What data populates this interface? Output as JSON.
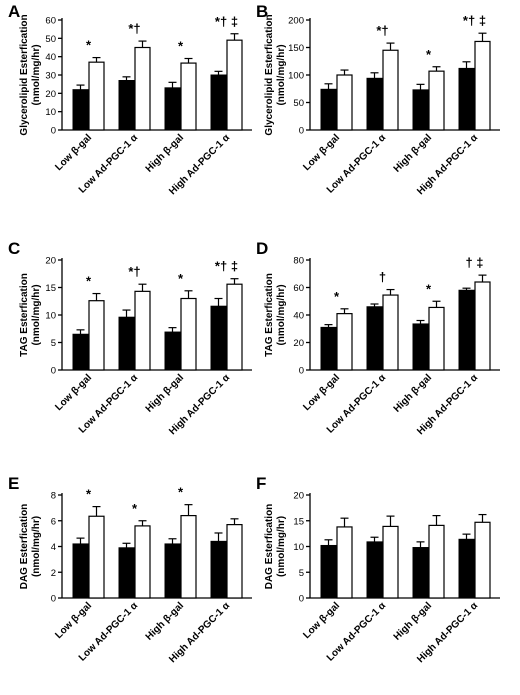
{
  "categories": [
    "Low β-gal",
    "Low Ad-PGC-1 α",
    "High β-gal",
    "High Ad-PGC-1 α"
  ],
  "colors": {
    "filled_series": "#000000",
    "open_series": "#ffffff",
    "stroke": "#000000"
  },
  "chart_data": [
    {
      "panel": "A",
      "type": "bar",
      "ylabel_lines": [
        "Glycerolipid Esterfication",
        "(nmol/mg/hr)"
      ],
      "ylim": [
        0,
        60
      ],
      "yticks": [
        0,
        10,
        20,
        30,
        40,
        50,
        60
      ],
      "series": [
        {
          "values": [
            22,
            27,
            23,
            30
          ],
          "errors": [
            2.5,
            2,
            3,
            2
          ]
        },
        {
          "values": [
            37,
            45,
            36.5,
            49
          ],
          "errors": [
            2.5,
            3.5,
            2.5,
            3.5
          ]
        }
      ],
      "annotations": [
        "*",
        "*†",
        "*",
        "*† ‡"
      ]
    },
    {
      "panel": "B",
      "type": "bar",
      "ylabel_lines": [
        "Glycerolipid Esterfication",
        "(nmol/mg/hr)"
      ],
      "ylim": [
        0,
        200
      ],
      "yticks": [
        0,
        50,
        100,
        150,
        200
      ],
      "series": [
        {
          "values": [
            74,
            94,
            73,
            112
          ],
          "errors": [
            10,
            10,
            10,
            12
          ]
        },
        {
          "values": [
            100,
            145,
            107,
            161
          ],
          "errors": [
            9,
            13,
            8,
            15
          ]
        }
      ],
      "annotations": [
        "",
        "*†",
        "*",
        "*† ‡"
      ]
    },
    {
      "panel": "C",
      "type": "bar",
      "ylabel_lines": [
        "TAG Esterfication",
        "(nmol/mg/hr)"
      ],
      "ylim": [
        0,
        20
      ],
      "yticks": [
        0,
        5,
        10,
        15,
        20
      ],
      "series": [
        {
          "values": [
            6.5,
            9.6,
            6.9,
            11.6
          ],
          "errors": [
            0.8,
            1.3,
            0.8,
            1.4
          ]
        },
        {
          "values": [
            12.6,
            14.3,
            13.0,
            15.6
          ],
          "errors": [
            1.3,
            1.3,
            1.4,
            1.0
          ]
        }
      ],
      "annotations": [
        "*",
        "*†",
        "*",
        "*† ‡"
      ]
    },
    {
      "panel": "D",
      "type": "bar",
      "ylabel_lines": [
        "TAG Esterfication",
        "(nmol/mg/hr)"
      ],
      "ylim": [
        0,
        80
      ],
      "yticks": [
        0,
        20,
        40,
        60,
        80
      ],
      "series": [
        {
          "values": [
            31,
            46,
            33.5,
            58
          ],
          "errors": [
            2,
            2,
            2.5,
            1.5
          ]
        },
        {
          "values": [
            41,
            54.5,
            45.5,
            64
          ],
          "errors": [
            3.5,
            4,
            4.5,
            5
          ]
        }
      ],
      "annotations": [
        "*",
        "†",
        "*",
        "† ‡"
      ]
    },
    {
      "panel": "E",
      "type": "bar",
      "ylabel_lines": [
        "DAG Esterfication",
        "(nmol/mg/hr)"
      ],
      "ylim": [
        0,
        8
      ],
      "yticks": [
        0,
        2,
        4,
        6,
        8
      ],
      "series": [
        {
          "values": [
            4.2,
            3.9,
            4.2,
            4.4
          ],
          "errors": [
            0.45,
            0.35,
            0.4,
            0.65
          ]
        },
        {
          "values": [
            6.35,
            5.6,
            6.4,
            5.7
          ],
          "errors": [
            0.75,
            0.4,
            0.85,
            0.45
          ]
        }
      ],
      "annotations": [
        "*",
        "*",
        "*",
        ""
      ]
    },
    {
      "panel": "F",
      "type": "bar",
      "ylabel_lines": [
        "DAG Esterfication",
        "(nmol/mg/hr)"
      ],
      "ylim": [
        0,
        20
      ],
      "yticks": [
        0,
        5,
        10,
        15,
        20
      ],
      "series": [
        {
          "values": [
            10.2,
            10.9,
            9.8,
            11.4
          ],
          "errors": [
            1.1,
            0.9,
            1.1,
            1.0
          ]
        },
        {
          "values": [
            13.8,
            13.9,
            14.1,
            14.7
          ],
          "errors": [
            1.7,
            2.0,
            1.9,
            1.5
          ]
        }
      ],
      "annotations": [
        "",
        "",
        "",
        ""
      ]
    }
  ]
}
